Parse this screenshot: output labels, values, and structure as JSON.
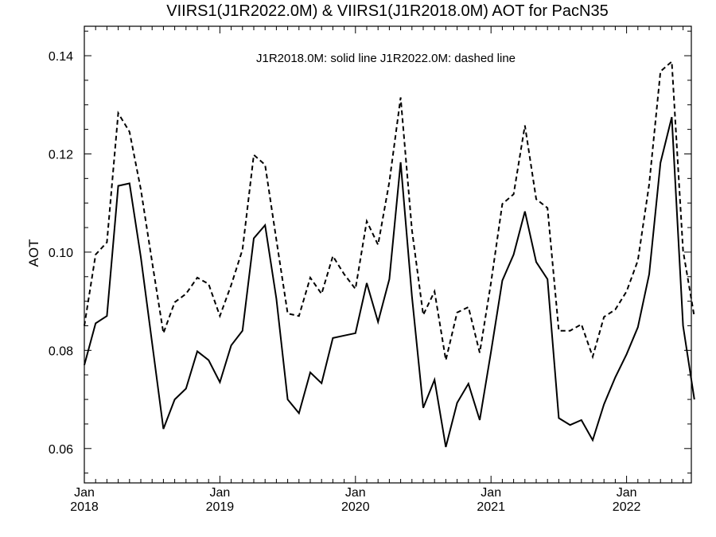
{
  "chart_data": {
    "type": "line",
    "title": "VIIRS1(J1R2022.0M) & VIIRS1(J1R2018.0M)  AOT for PacN35",
    "annotation": "J1R2018.0M: solid line   J1R2022.0M: dashed line",
    "xlabel": "",
    "ylabel": "AOT",
    "x_start": "2018-01",
    "x_step": "month",
    "x_ticks": [
      {
        "month": "Jan",
        "year": "2018"
      },
      {
        "month": "Jan",
        "year": "2019"
      },
      {
        "month": "Jan",
        "year": "2020"
      },
      {
        "month": "Jan",
        "year": "2021"
      },
      {
        "month": "Jan",
        "year": "2022"
      }
    ],
    "ylim": [
      0.053,
      0.146
    ],
    "y_ticks": [
      "0.06",
      "0.08",
      "0.10",
      "0.12",
      "0.14"
    ],
    "grid": false,
    "series": [
      {
        "name": "J1R2018.0M",
        "style": "solid",
        "color": "#000000",
        "values": [
          0.077,
          0.0855,
          0.087,
          0.1135,
          0.114,
          0.099,
          0.0815,
          0.064,
          0.07,
          0.0722,
          0.0798,
          0.078,
          0.0735,
          0.081,
          0.084,
          0.1028,
          0.1055,
          0.0905,
          0.07,
          0.0672,
          0.0755,
          0.0733,
          0.0825,
          0.083,
          0.0835,
          0.0937,
          0.0858,
          0.0945,
          0.1183,
          0.091,
          0.0683,
          0.074,
          0.0603,
          0.0693,
          0.0732,
          0.0658,
          0.0797,
          0.0942,
          0.0995,
          0.1083,
          0.098,
          0.0945,
          0.0662,
          0.0648,
          0.0658,
          0.0617,
          0.069,
          0.0745,
          0.0792,
          0.0847,
          0.0955,
          0.1182,
          0.1275,
          0.085,
          0.07
        ]
      },
      {
        "name": "J1R2022.0M",
        "style": "dashed",
        "color": "#000000",
        "values": [
          0.085,
          0.0995,
          0.102,
          0.1283,
          0.1245,
          0.1128,
          0.098,
          0.0835,
          0.0898,
          0.0915,
          0.0948,
          0.0935,
          0.087,
          0.0933,
          0.1005,
          0.1198,
          0.1178,
          0.1025,
          0.0875,
          0.087,
          0.0948,
          0.0915,
          0.0992,
          0.0955,
          0.0925,
          0.1063,
          0.1015,
          0.1143,
          0.1315,
          0.1045,
          0.0872,
          0.092,
          0.078,
          0.0877,
          0.0888,
          0.0795,
          0.0938,
          0.1098,
          0.1118,
          0.1258,
          0.1108,
          0.109,
          0.084,
          0.084,
          0.0853,
          0.0787,
          0.0868,
          0.0883,
          0.092,
          0.0983,
          0.1138,
          0.1368,
          0.1388,
          0.1003,
          0.0868
        ]
      }
    ]
  }
}
